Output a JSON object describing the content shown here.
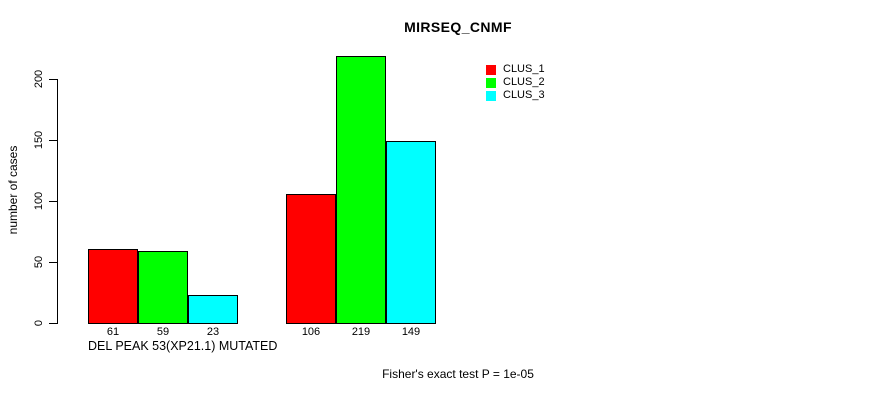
{
  "chart_data": {
    "type": "bar",
    "title": "MIRSEQ_CNMF",
    "ylabel": "number of cases",
    "xlabel_groups": [
      "DEL PEAK 53(XP21.1) MUTATED",
      ""
    ],
    "series": [
      {
        "name": "CLUS_1",
        "color": "#ff0000",
        "values": [
          61,
          106
        ]
      },
      {
        "name": "CLUS_2",
        "color": "#00ff00",
        "values": [
          59,
          219
        ]
      },
      {
        "name": "CLUS_3",
        "color": "#00ffff",
        "values": [
          23,
          149
        ]
      }
    ],
    "yticks": [
      0,
      50,
      100,
      150,
      200
    ],
    "ylim": [
      0,
      220
    ],
    "grid": false,
    "legend_position": "top-right",
    "bar_border_color": "#000000",
    "footnote": "Fisher's exact test P = 1e-05"
  }
}
